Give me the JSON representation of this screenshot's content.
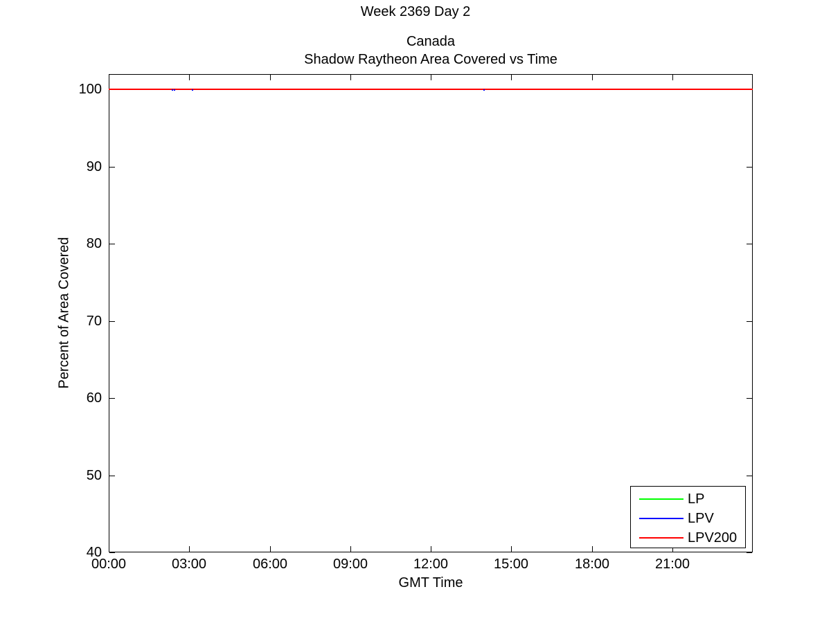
{
  "figure": {
    "suptitle": "Week 2369 Day 2",
    "background_color": "#FFFFFF",
    "text_color": "#000000"
  },
  "chart_data": {
    "type": "line",
    "title": "Shadow Raytheon Area Covered vs Time",
    "title_lines": [
      "Canada",
      "Shadow Raytheon Area Covered vs Time"
    ],
    "xlabel": "GMT Time",
    "ylabel": "Percent of Area Covered",
    "xlim_hours": [
      0,
      24
    ],
    "ylim": [
      40,
      102
    ],
    "grid": false,
    "x_ticks": [
      {
        "value": 0,
        "label": "00:00"
      },
      {
        "value": 3,
        "label": "03:00"
      },
      {
        "value": 6,
        "label": "06:00"
      },
      {
        "value": 9,
        "label": "09:00"
      },
      {
        "value": 12,
        "label": "12:00"
      },
      {
        "value": 15,
        "label": "15:00"
      },
      {
        "value": 18,
        "label": "18:00"
      },
      {
        "value": 21,
        "label": "21:00"
      }
    ],
    "y_ticks": [
      {
        "value": 40,
        "label": "40"
      },
      {
        "value": 50,
        "label": "50"
      },
      {
        "value": 60,
        "label": "60"
      },
      {
        "value": 70,
        "label": "70"
      },
      {
        "value": 80,
        "label": "80"
      },
      {
        "value": 90,
        "label": "90"
      },
      {
        "value": 100,
        "label": "100"
      }
    ],
    "series": [
      {
        "name": "LP",
        "color": "#00FF00",
        "x_hours": [
          0,
          24
        ],
        "y_percent": [
          100,
          100
        ]
      },
      {
        "name": "LPV",
        "color": "#0000FF",
        "x_hours": [
          0,
          24
        ],
        "y_percent": [
          100,
          100
        ],
        "visible_dip_hours": [
          2.35,
          2.42,
          3.1,
          13.95
        ]
      },
      {
        "name": "LPV200",
        "color": "#FF0000",
        "x_hours": [
          0,
          24
        ],
        "y_percent": [
          100,
          100
        ]
      }
    ],
    "legend": {
      "position": "bottom-right",
      "border": true,
      "entries": [
        "LP",
        "LPV",
        "LPV200"
      ]
    }
  }
}
